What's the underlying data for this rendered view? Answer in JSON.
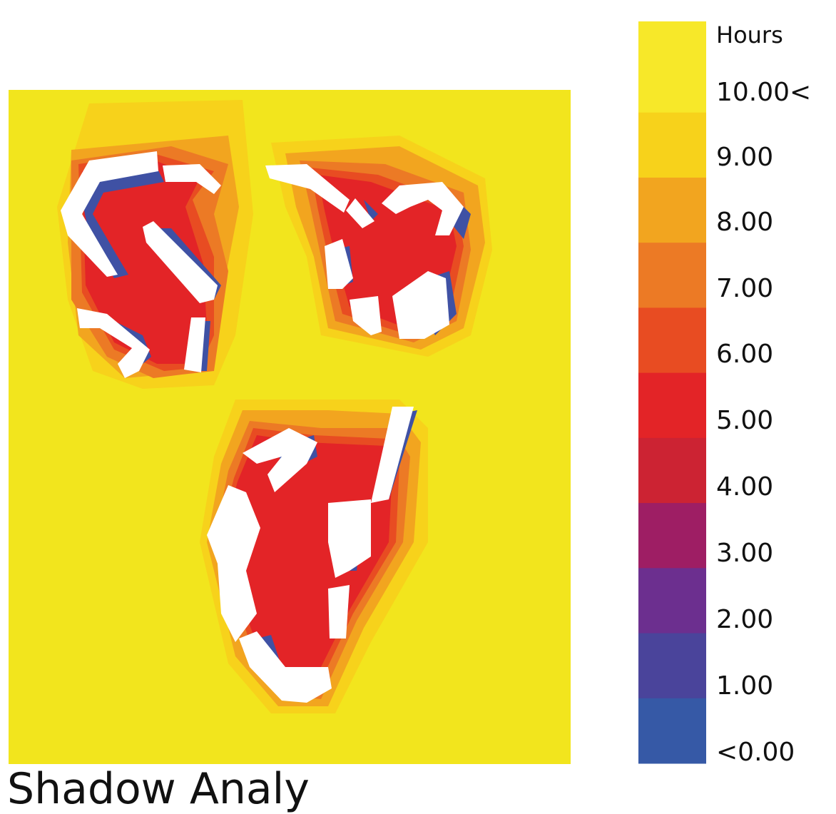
{
  "legend": {
    "title": "Hours",
    "bins": [
      {
        "label": "10.00<",
        "color": "#f7e829"
      },
      {
        "label": "9.00",
        "color": "#f7d21b"
      },
      {
        "label": "8.00",
        "color": "#f2a51f"
      },
      {
        "label": "7.00",
        "color": "#ec7a25"
      },
      {
        "label": "6.00",
        "color": "#e84c22"
      },
      {
        "label": "5.00",
        "color": "#e32427"
      },
      {
        "label": "4.00",
        "color": "#cc2333"
      },
      {
        "label": "3.00",
        "color": "#9e1e64"
      },
      {
        "label": "2.00",
        "color": "#6c2f8f"
      },
      {
        "label": "1.00",
        "color": "#4a449b"
      },
      {
        "label": "<0.00",
        "color": "#3659a6"
      }
    ]
  },
  "caption": "Shadow Analy",
  "colors": {
    "background": "#f2e51d",
    "building": "#ffffff",
    "shade_high": "#3f51a4",
    "shade_mid": "#e32427",
    "shade_low": "#f2a51f"
  }
}
